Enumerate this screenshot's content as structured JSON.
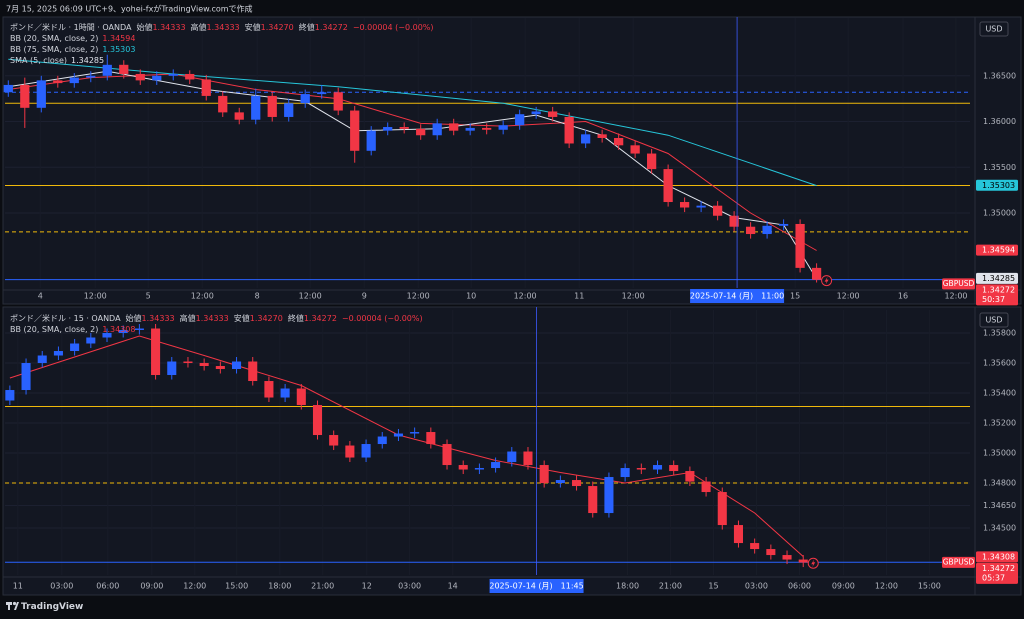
{
  "header": "7月 15, 2025 06:09 UTC+9、yohei-fxがTradingView.comで作成",
  "footer": "TradingView",
  "chart_data": [
    {
      "type": "candlestick",
      "title": "ポンド／米ドル · 1時間 · OANDA",
      "ohlc": [
        {
          "label": "始値",
          "value": "1.34333"
        },
        {
          "label": "高値",
          "value": "1.34333"
        },
        {
          "label": "安値",
          "value": "1.34270"
        },
        {
          "label": "終値",
          "value": "1.34272"
        }
      ],
      "change": "−0.00004 (−0.00%)",
      "currency": "USD",
      "up_color": "#2962ff",
      "down_color": "#f23645",
      "xlim": [
        -0.2,
        58.3
      ],
      "ylim": [
        1.3418,
        1.3711
      ],
      "yticks": [
        {
          "value": 1.365,
          "label": "1.36500"
        },
        {
          "value": 1.36,
          "label": "1.36000"
        },
        {
          "value": 1.355,
          "label": "1.35500"
        },
        {
          "value": 1.35,
          "label": "1.35000"
        }
      ],
      "xticks": [
        {
          "value": 1.94,
          "label": "4"
        },
        {
          "value": 5.27,
          "label": "12:00"
        },
        {
          "value": 8.48,
          "label": "5"
        },
        {
          "value": 11.76,
          "label": "12:00"
        },
        {
          "value": 15.09,
          "label": "8"
        },
        {
          "value": 18.3,
          "label": "12:00"
        },
        {
          "value": 21.58,
          "label": "9"
        },
        {
          "value": 24.85,
          "label": "12:00"
        },
        {
          "value": 28.06,
          "label": "10"
        },
        {
          "value": 31.33,
          "label": "12:00"
        },
        {
          "value": 34.61,
          "label": "11"
        },
        {
          "value": 37.88,
          "label": "12:00"
        },
        {
          "value": 47.7,
          "label": "15"
        },
        {
          "value": 50.91,
          "label": "12:00"
        },
        {
          "value": 54.24,
          "label": "16"
        },
        {
          "value": 57.45,
          "label": "12:00"
        }
      ],
      "crosshair": {
        "x": 44.18,
        "label": "2025-07-14 (月)　11:00"
      },
      "open": [
        1.3632,
        1.364,
        1.3615,
        1.3645,
        1.3642,
        1.3648,
        1.365,
        1.3662,
        1.3652,
        1.3645,
        1.365,
        1.3652,
        1.3646,
        1.3628,
        1.361,
        1.3602,
        1.3628,
        1.3605,
        1.362,
        1.363,
        1.3632,
        1.3612,
        1.3568,
        1.359,
        1.3594,
        1.3592,
        1.3585,
        1.3598,
        1.359,
        1.3593,
        1.3591,
        1.3596,
        1.3608,
        1.3611,
        1.3605,
        1.3576,
        1.3586,
        1.3582,
        1.3574,
        1.3565,
        1.3548,
        1.3512,
        1.3506,
        1.3508,
        1.3497,
        1.3485,
        1.3477,
        1.3486,
        1.3488,
        1.344
      ],
      "high": [
        1.3645,
        1.3648,
        1.365,
        1.365,
        1.3653,
        1.3655,
        1.3673,
        1.3667,
        1.3657,
        1.3655,
        1.3657,
        1.3656,
        1.3651,
        1.3633,
        1.3615,
        1.3636,
        1.3633,
        1.3625,
        1.3635,
        1.364,
        1.3637,
        1.3617,
        1.3595,
        1.3599,
        1.3599,
        1.3597,
        1.3603,
        1.3603,
        1.3598,
        1.3598,
        1.3601,
        1.3613,
        1.3616,
        1.3616,
        1.361,
        1.3591,
        1.3591,
        1.3587,
        1.3579,
        1.357,
        1.3553,
        1.3517,
        1.3513,
        1.3513,
        1.3502,
        1.349,
        1.3491,
        1.3493,
        1.3493,
        1.3445
      ],
      "low": [
        1.3627,
        1.3593,
        1.361,
        1.3637,
        1.3637,
        1.3643,
        1.3645,
        1.3647,
        1.364,
        1.364,
        1.3645,
        1.3641,
        1.3623,
        1.3605,
        1.3597,
        1.3597,
        1.36,
        1.36,
        1.3615,
        1.3625,
        1.3607,
        1.3555,
        1.3563,
        1.3585,
        1.3587,
        1.358,
        1.358,
        1.3585,
        1.3585,
        1.3586,
        1.3586,
        1.3591,
        1.3603,
        1.36,
        1.3571,
        1.3571,
        1.3577,
        1.3569,
        1.356,
        1.3543,
        1.3507,
        1.3501,
        1.3501,
        1.3492,
        1.348,
        1.3472,
        1.3472,
        1.3481,
        1.3435,
        1.3424
      ],
      "close": [
        1.364,
        1.3615,
        1.3645,
        1.3642,
        1.3648,
        1.365,
        1.3662,
        1.3652,
        1.3645,
        1.365,
        1.3652,
        1.3646,
        1.3628,
        1.361,
        1.3602,
        1.3628,
        1.3605,
        1.362,
        1.363,
        1.3632,
        1.3612,
        1.3568,
        1.359,
        1.3594,
        1.3592,
        1.3585,
        1.3598,
        1.359,
        1.3593,
        1.3591,
        1.3596,
        1.3608,
        1.3611,
        1.3605,
        1.3576,
        1.3586,
        1.3582,
        1.3574,
        1.3565,
        1.3548,
        1.3512,
        1.3506,
        1.3508,
        1.3497,
        1.3485,
        1.3477,
        1.3486,
        1.3488,
        1.344,
        1.3427
      ],
      "indicators": [
        {
          "name": "BB (20, SMA, close, 2)",
          "value_label": "1.34594",
          "color": "#f23645",
          "x": [
            0,
            5,
            10,
            15,
            20,
            25,
            30,
            35,
            40,
            45,
            49
          ],
          "values": [
            1.3635,
            1.3648,
            1.3652,
            1.3635,
            1.3625,
            1.3598,
            1.3595,
            1.36,
            1.3565,
            1.35,
            1.3459
          ]
        },
        {
          "name": "BB (75, SMA, close, 2)",
          "value_label": "1.35303",
          "color": "#26c6da",
          "x": [
            0,
            10,
            20,
            30,
            40,
            49
          ],
          "values": [
            1.3668,
            1.3652,
            1.3638,
            1.362,
            1.3585,
            1.353
          ]
        },
        {
          "name": "SMA (5, close)",
          "value_label": "1.34285",
          "color": "#e0e3eb",
          "x": [
            0,
            6,
            12,
            18,
            21,
            26,
            32,
            36,
            40,
            44,
            47,
            49
          ],
          "values": [
            1.3638,
            1.3655,
            1.3635,
            1.3622,
            1.359,
            1.3592,
            1.3607,
            1.3585,
            1.353,
            1.3495,
            1.3487,
            1.3428
          ]
        }
      ],
      "hlines": [
        {
          "value": 1.3632,
          "color": "#2962ff",
          "style": "dashed"
        },
        {
          "value": 1.362,
          "color": "#f0b90b",
          "style": "solid"
        },
        {
          "value": 1.353,
          "color": "#f0b90b",
          "style": "solid"
        },
        {
          "value": 1.34793,
          "color": "#f0b90b",
          "style": "dashed"
        },
        {
          "value": 1.34272,
          "color": "#2962ff",
          "style": "solid"
        }
      ],
      "price_tags": [
        {
          "value": 1.35303,
          "label": "1.35303",
          "color": "#26c6da",
          "text_color": "#000000"
        },
        {
          "value": 1.34594,
          "label": "1.34594",
          "color": "#f23645",
          "text_color": "#ffffff"
        },
        {
          "value": 1.34285,
          "label": "1.34285",
          "color": "#e0e3eb",
          "text_color": "#000000"
        }
      ],
      "last_price": {
        "value": 1.34272,
        "label": "1.34272"
      },
      "symbol": "GBPUSD",
      "countdown": "50:37"
    },
    {
      "type": "candlestick",
      "title": "ポンド／米ドル · 15 · OANDA",
      "ohlc": [
        {
          "label": "始値",
          "value": "1.34333"
        },
        {
          "label": "高値",
          "value": "1.34333"
        },
        {
          "label": "安値",
          "value": "1.34270"
        },
        {
          "label": "終値",
          "value": "1.34272"
        }
      ],
      "change": "−0.00004 (−0.00%)",
      "currency": "USD",
      "up_color": "#2962ff",
      "down_color": "#f23645",
      "xlim": [
        -0.3,
        59.3
      ],
      "ylim": [
        1.34187,
        1.3594
      ],
      "yticks": [
        {
          "value": 1.358,
          "label": "1.35800"
        },
        {
          "value": 1.356,
          "label": "1.35600"
        },
        {
          "value": 1.354,
          "label": "1.35400"
        },
        {
          "value": 1.352,
          "label": "1.35200"
        },
        {
          "value": 1.35,
          "label": "1.35000"
        },
        {
          "value": 1.348,
          "label": "1.34800"
        },
        {
          "value": 1.3465,
          "label": "1.34650"
        },
        {
          "value": 1.345,
          "label": "1.34500"
        }
      ],
      "xticks": [
        {
          "value": 0.49,
          "label": "11"
        },
        {
          "value": 3.21,
          "label": "03:00"
        },
        {
          "value": 6.05,
          "label": "06:00"
        },
        {
          "value": 8.77,
          "label": "09:00"
        },
        {
          "value": 11.42,
          "label": "12:00"
        },
        {
          "value": 14.01,
          "label": "15:00"
        },
        {
          "value": 16.67,
          "label": "18:00"
        },
        {
          "value": 19.32,
          "label": "21:00"
        },
        {
          "value": 22.04,
          "label": "12"
        },
        {
          "value": 24.69,
          "label": "03:00"
        },
        {
          "value": 27.35,
          "label": "14"
        },
        {
          "value": 38.15,
          "label": "18:00"
        },
        {
          "value": 40.8,
          "label": "21:00"
        },
        {
          "value": 43.46,
          "label": "15"
        },
        {
          "value": 46.11,
          "label": "03:00"
        },
        {
          "value": 48.77,
          "label": "06:00"
        },
        {
          "value": 51.48,
          "label": "09:00"
        },
        {
          "value": 54.14,
          "label": "12:00"
        },
        {
          "value": 56.79,
          "label": "15:00"
        }
      ],
      "crosshair": {
        "x": 32.53,
        "label": "2025-07-14 (月)　11:45"
      },
      "open": [
        1.3535,
        1.3542,
        1.356,
        1.3565,
        1.3568,
        1.3573,
        1.3577,
        1.358,
        1.3582,
        1.3583,
        1.3552,
        1.3561,
        1.356,
        1.3558,
        1.3556,
        1.3561,
        1.3548,
        1.3537,
        1.3543,
        1.3532,
        1.3512,
        1.3505,
        1.3497,
        1.3506,
        1.3511,
        1.3513,
        1.3514,
        1.3506,
        1.3492,
        1.3489,
        1.349,
        1.3494,
        1.3501,
        1.3492,
        1.348,
        1.3482,
        1.3478,
        1.346,
        1.3484,
        1.349,
        1.3489,
        1.3492,
        1.3488,
        1.3481,
        1.3474,
        1.3452,
        1.344,
        1.3436,
        1.3432,
        1.3429
      ],
      "high": [
        1.3545,
        1.3563,
        1.3568,
        1.3571,
        1.3576,
        1.358,
        1.3583,
        1.3585,
        1.3586,
        1.3586,
        1.3564,
        1.3564,
        1.3563,
        1.3561,
        1.3564,
        1.3564,
        1.3551,
        1.3546,
        1.3546,
        1.3535,
        1.3515,
        1.3508,
        1.3509,
        1.3514,
        1.3516,
        1.3517,
        1.3517,
        1.3509,
        1.3495,
        1.3493,
        1.3497,
        1.3504,
        1.3504,
        1.3495,
        1.3485,
        1.3485,
        1.3481,
        1.3487,
        1.3493,
        1.3493,
        1.3495,
        1.3495,
        1.3491,
        1.3484,
        1.3477,
        1.3455,
        1.3443,
        1.3439,
        1.3435,
        1.3432
      ],
      "low": [
        1.3532,
        1.3539,
        1.3557,
        1.3562,
        1.3565,
        1.357,
        1.3574,
        1.3577,
        1.3579,
        1.3549,
        1.3549,
        1.3557,
        1.3555,
        1.3553,
        1.3553,
        1.3545,
        1.3534,
        1.3534,
        1.3529,
        1.3509,
        1.3502,
        1.3494,
        1.3494,
        1.3503,
        1.3508,
        1.351,
        1.3503,
        1.3489,
        1.3486,
        1.3486,
        1.3487,
        1.3491,
        1.3489,
        1.3477,
        1.3477,
        1.3475,
        1.3457,
        1.3457,
        1.3481,
        1.3486,
        1.3486,
        1.3485,
        1.3478,
        1.3471,
        1.3449,
        1.3437,
        1.3433,
        1.3429,
        1.3426,
        1.3424
      ],
      "close": [
        1.3542,
        1.356,
        1.3565,
        1.3568,
        1.3573,
        1.3577,
        1.358,
        1.3582,
        1.3583,
        1.3552,
        1.3561,
        1.356,
        1.3558,
        1.3556,
        1.3561,
        1.3548,
        1.3537,
        1.3543,
        1.3532,
        1.3512,
        1.3505,
        1.3497,
        1.3506,
        1.3511,
        1.3513,
        1.3514,
        1.3506,
        1.3492,
        1.3489,
        1.349,
        1.3494,
        1.3501,
        1.3492,
        1.348,
        1.3482,
        1.3478,
        1.346,
        1.3484,
        1.349,
        1.3489,
        1.3492,
        1.3488,
        1.3481,
        1.3474,
        1.3452,
        1.344,
        1.3436,
        1.3432,
        1.3429,
        1.3427
      ],
      "indicators": [
        {
          "name": "BB (20, SMA, close, 2)",
          "value_label": "1.34308",
          "color": "#f23645",
          "x": [
            0,
            8,
            12,
            18,
            24,
            30,
            34,
            38,
            42,
            46,
            49
          ],
          "values": [
            1.355,
            1.3578,
            1.3565,
            1.3545,
            1.3512,
            1.3495,
            1.3487,
            1.348,
            1.3487,
            1.346,
            1.3431
          ]
        }
      ],
      "hlines": [
        {
          "value": 1.3531,
          "color": "#f0b90b",
          "style": "solid"
        },
        {
          "value": 1.348,
          "color": "#f0b90b",
          "style": "dashed"
        },
        {
          "value": 1.34272,
          "color": "#2962ff",
          "style": "solid"
        }
      ],
      "price_tags": [
        {
          "value": 1.34308,
          "label": "1.34308",
          "color": "#f23645",
          "text_color": "#ffffff"
        }
      ],
      "last_price": {
        "value": 1.34272,
        "label": "1.34272"
      },
      "symbol": "GBPUSD",
      "countdown": "05:37"
    }
  ]
}
